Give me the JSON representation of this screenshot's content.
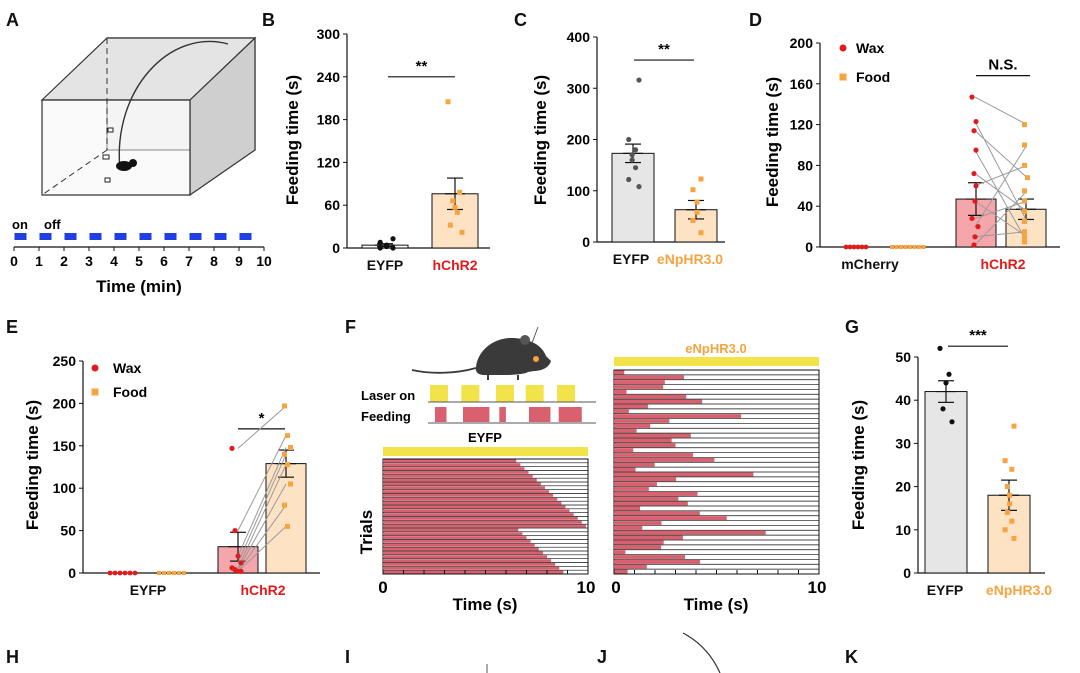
{
  "panel_letters": [
    "A",
    "B",
    "C",
    "D",
    "E",
    "F",
    "G",
    "H",
    "I",
    "J",
    "K"
  ],
  "colors": {
    "wax": "#e31a1c",
    "food": "#f7a440",
    "red_label": "#e31a1c",
    "orange_label": "#f7a440",
    "bar_gray": "#e6e6e6",
    "bar_orange": "#fde2c4",
    "bar_red": "#f4a6aa",
    "raster": "#d9606e",
    "laser_yellow": "#f2e34a",
    "timeline_blue": "#1f3fe0",
    "lines_gray": "#9a9a9a"
  },
  "panel_a": {
    "timeline_label_on": "on",
    "timeline_label_off": "off",
    "xticks": [
      "0",
      "1",
      "2",
      "3",
      "4",
      "5",
      "6",
      "7",
      "8",
      "9",
      "10"
    ],
    "xlabel": "Time (min)",
    "on_off_cycle_min": [
      0.5,
      0.5
    ]
  },
  "chart_data": [
    {
      "panel": "B",
      "type": "bar",
      "ylabel": "Feeding time (s)",
      "ylim": [
        0,
        300
      ],
      "yticks": [
        "0",
        "60",
        "120",
        "180",
        "240",
        "300"
      ],
      "categories": [
        "EYFP",
        "hChR2"
      ],
      "category_colors": [
        "#111111",
        "#e31a1c"
      ],
      "values": [
        4,
        76
      ],
      "sem": [
        2,
        22
      ],
      "points": [
        [
          0,
          0,
          2,
          4,
          8,
          13
        ],
        [
          22,
          32,
          50,
          57,
          66,
          78,
          205
        ]
      ],
      "significance": "**"
    },
    {
      "panel": "C",
      "type": "bar",
      "ylabel": "Feeding time (s)",
      "ylim": [
        0,
        400
      ],
      "yticks": [
        "0",
        "100",
        "200",
        "300",
        "400"
      ],
      "categories": [
        "EYFP",
        "eNpHR3.0"
      ],
      "category_colors": [
        "#111111",
        "#f7a440"
      ],
      "values": [
        173,
        63
      ],
      "sem": [
        18,
        18
      ],
      "points": [
        [
          108,
          122,
          145,
          160,
          170,
          180,
          200,
          316
        ],
        [
          18,
          42,
          58,
          78,
          102,
          123
        ]
      ],
      "significance": "**"
    },
    {
      "panel": "D",
      "type": "bar",
      "ylabel": "Feeding time (s)",
      "ylim": [
        0,
        200
      ],
      "yticks": [
        "0",
        "40",
        "80",
        "120",
        "160",
        "200"
      ],
      "categories": [
        "mCherry",
        "hChR2"
      ],
      "category_colors": [
        "#111111",
        "#e31a1c"
      ],
      "legend": [
        "Wax",
        "Food"
      ],
      "series": [
        {
          "name": "Wax",
          "values": [
            0,
            47
          ],
          "sem": [
            0,
            16
          ],
          "points": [
            [
              0,
              0,
              0,
              0,
              0,
              0
            ],
            [
              147,
              123,
              114,
              95,
              72,
              60,
              45,
              28,
              20,
              10,
              2
            ]
          ]
        },
        {
          "name": "Food",
          "values": [
            0,
            37
          ],
          "sem": [
            0,
            10
          ],
          "points": [
            [
              0,
              0,
              0,
              0,
              0,
              0,
              0,
              0
            ],
            [
              120,
              100,
              80,
              68,
              55,
              45,
              35,
              25,
              15,
              10,
              5
            ]
          ]
        }
      ],
      "significance": "N.S."
    },
    {
      "panel": "E",
      "type": "bar",
      "ylabel": "Feeding time (s)",
      "ylim": [
        0,
        250
      ],
      "yticks": [
        "0",
        "50",
        "100",
        "150",
        "200",
        "250"
      ],
      "categories": [
        "EYFP",
        "hChR2"
      ],
      "category_colors": [
        "#111111",
        "#e31a1c"
      ],
      "legend": [
        "Wax",
        "Food"
      ],
      "series": [
        {
          "name": "Wax",
          "values": [
            0,
            31
          ],
          "sem": [
            0,
            17
          ],
          "points": [
            [
              0,
              0,
              0,
              0,
              0,
              0
            ],
            [
              147,
              50,
              20,
              12,
              6,
              4,
              2,
              2
            ]
          ]
        },
        {
          "name": "Food",
          "values": [
            0,
            129
          ],
          "sem": [
            0,
            16
          ],
          "points": [
            [
              0,
              0,
              0,
              0,
              0,
              0
            ],
            [
              197,
              162,
              148,
              140,
              128,
              105,
              80,
              55
            ]
          ]
        }
      ],
      "significance": "*"
    },
    {
      "panel": "F",
      "type": "raster",
      "groups": [
        "EYFP",
        "eNpHR3.0"
      ],
      "legend_labels": [
        "Laser on",
        "Feeding"
      ],
      "ylabel": "Trials",
      "xlabel": "Time (s)",
      "xticks": [
        "0",
        "10"
      ],
      "xlim": [
        0,
        10
      ],
      "eyfp_trials": 30,
      "enphr_trials": 42
    },
    {
      "panel": "G",
      "type": "bar",
      "ylabel": "Feeding time (s)",
      "ylim": [
        0,
        50
      ],
      "yticks": [
        "0",
        "10",
        "20",
        "30",
        "40",
        "50"
      ],
      "categories": [
        "EYFP",
        "eNpHR3.0"
      ],
      "category_colors": [
        "#111111",
        "#f7a440"
      ],
      "values": [
        42,
        18
      ],
      "sem": [
        2.5,
        3.5
      ],
      "points": [
        [
          35,
          38,
          44,
          46,
          52
        ],
        [
          8,
          10,
          12,
          14,
          16,
          18,
          20,
          24,
          26,
          34
        ]
      ],
      "significance": "***"
    }
  ]
}
